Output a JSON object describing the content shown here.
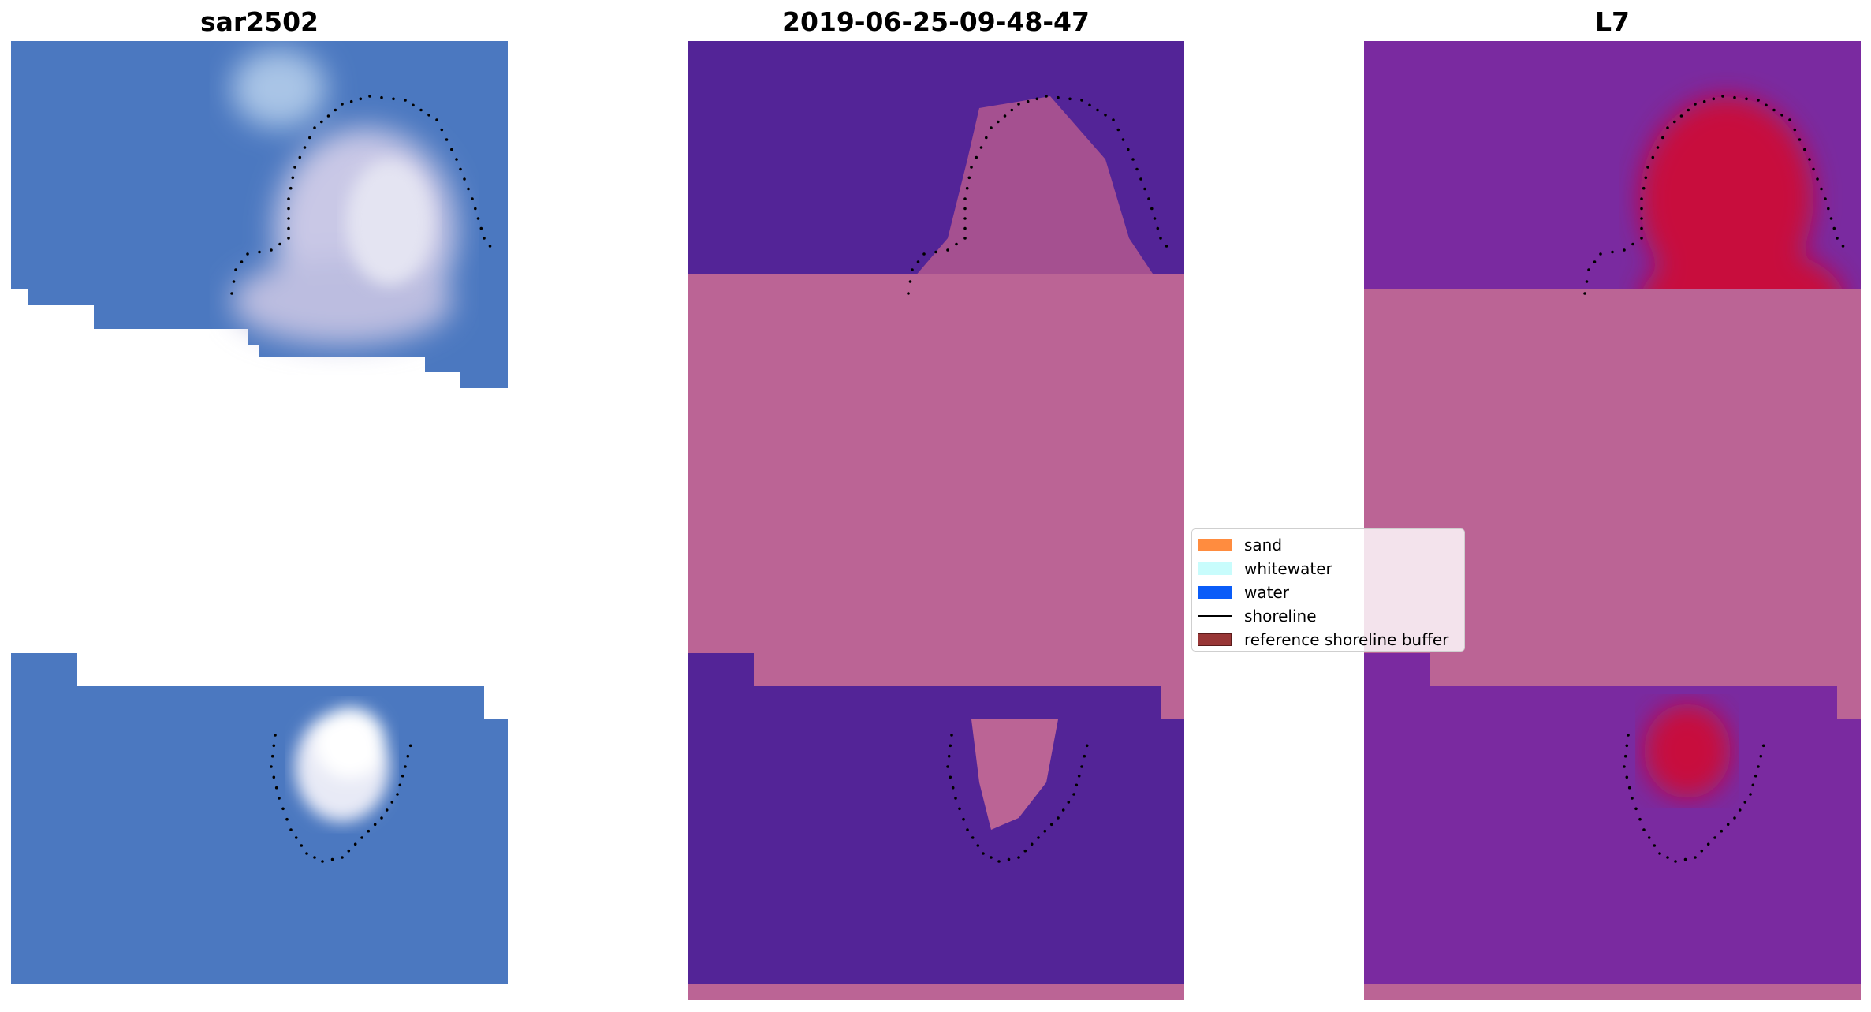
{
  "panels": [
    {
      "id": "rgb",
      "title": "sar2502"
    },
    {
      "id": "classified",
      "title": "2019-06-25-09-48-47"
    },
    {
      "id": "index",
      "title": "L7"
    }
  ],
  "legend": {
    "items": [
      {
        "label": "sand",
        "color": "#ff8c3f",
        "kind": "patch"
      },
      {
        "label": "whitewater",
        "color": "#c8fcfc",
        "kind": "patch"
      },
      {
        "label": "water",
        "color": "#0a5cf8",
        "kind": "patch"
      },
      {
        "label": "shoreline",
        "color": "#000000",
        "kind": "line"
      },
      {
        "label": "reference shoreline buffer",
        "color": "#983636",
        "kind": "patch"
      }
    ]
  },
  "colors": {
    "buffer_overlay": "#bb6495",
    "water_class": "#532497",
    "rgb_water": "#4b78c0",
    "index_water": "#7a2aa0",
    "index_sand": "#c80a3c"
  }
}
